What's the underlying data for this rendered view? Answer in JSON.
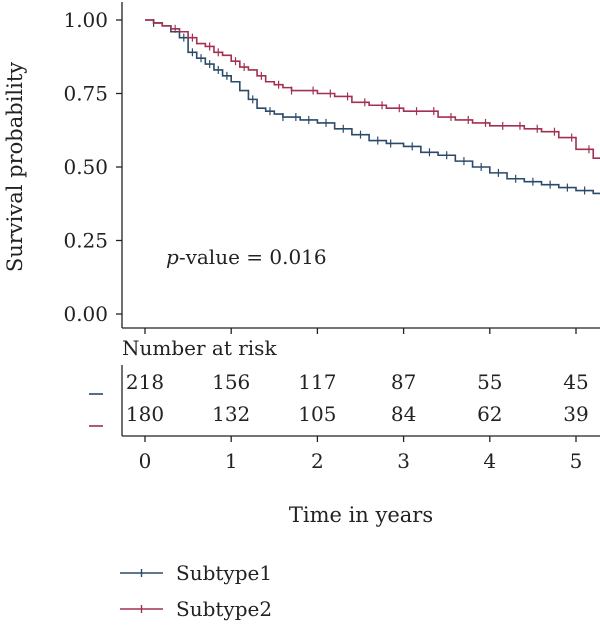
{
  "chart_data": {
    "type": "line",
    "subtype": "kaplan-meier survival curve",
    "ylabel": "Survival probability",
    "xlabel": "Time in years",
    "xlim": [
      0,
      5.3
    ],
    "ylim": [
      0,
      1
    ],
    "x_ticks": [
      "0",
      "1",
      "2",
      "3",
      "4",
      "5"
    ],
    "y_ticks": [
      "0.00",
      "0.25",
      "0.50",
      "0.75",
      "1.00"
    ],
    "grid": false,
    "annotation": {
      "prefix": "p",
      "text": "-value = 0.016"
    },
    "legend_position": "bottom-left",
    "series": [
      {
        "name": "Subtype1",
        "color": "#2b4a6b",
        "x": [
          0,
          0.05,
          0.1,
          0.2,
          0.3,
          0.4,
          0.5,
          0.6,
          0.7,
          0.8,
          0.9,
          1.0,
          1.1,
          1.2,
          1.3,
          1.4,
          1.5,
          1.6,
          1.7,
          1.8,
          1.9,
          2.0,
          2.2,
          2.4,
          2.6,
          2.8,
          3.0,
          3.2,
          3.4,
          3.6,
          3.8,
          4.0,
          4.2,
          4.4,
          4.6,
          4.8,
          5.0,
          5.2,
          5.3
        ],
        "y": [
          1.0,
          1.0,
          0.99,
          0.98,
          0.96,
          0.94,
          0.89,
          0.87,
          0.85,
          0.83,
          0.81,
          0.79,
          0.76,
          0.73,
          0.7,
          0.69,
          0.68,
          0.67,
          0.67,
          0.66,
          0.66,
          0.65,
          0.63,
          0.61,
          0.59,
          0.58,
          0.57,
          0.55,
          0.54,
          0.52,
          0.5,
          0.48,
          0.46,
          0.45,
          0.44,
          0.43,
          0.42,
          0.41,
          0.39
        ],
        "censor_x": [
          0.1,
          0.45,
          0.55,
          0.65,
          0.75,
          0.85,
          0.95,
          1.25,
          1.45,
          1.6,
          1.75,
          1.9,
          2.1,
          2.3,
          2.5,
          2.7,
          2.85,
          3.1,
          3.3,
          3.5,
          3.7,
          3.9,
          4.1,
          4.3,
          4.5,
          4.7,
          4.9,
          5.1
        ]
      },
      {
        "name": "Subtype2",
        "color": "#a33050",
        "x": [
          0,
          0.05,
          0.1,
          0.2,
          0.3,
          0.4,
          0.5,
          0.6,
          0.7,
          0.8,
          0.9,
          1.0,
          1.1,
          1.2,
          1.3,
          1.4,
          1.5,
          1.6,
          1.7,
          1.8,
          1.9,
          2.0,
          2.2,
          2.4,
          2.6,
          2.8,
          3.0,
          3.2,
          3.4,
          3.6,
          3.8,
          4.0,
          4.2,
          4.4,
          4.6,
          4.8,
          5.0,
          5.2,
          5.3
        ],
        "y": [
          1.0,
          1.0,
          0.99,
          0.98,
          0.97,
          0.96,
          0.94,
          0.92,
          0.91,
          0.89,
          0.88,
          0.86,
          0.84,
          0.83,
          0.81,
          0.79,
          0.78,
          0.77,
          0.76,
          0.76,
          0.76,
          0.75,
          0.74,
          0.72,
          0.71,
          0.7,
          0.69,
          0.69,
          0.67,
          0.66,
          0.65,
          0.64,
          0.64,
          0.63,
          0.62,
          0.6,
          0.56,
          0.53,
          0.51
        ],
        "censor_x": [
          0.35,
          0.55,
          0.75,
          0.85,
          1.05,
          1.15,
          1.35,
          1.55,
          1.7,
          1.95,
          2.15,
          2.35,
          2.55,
          2.75,
          2.95,
          3.15,
          3.35,
          3.55,
          3.75,
          3.95,
          4.15,
          4.35,
          4.55,
          4.75,
          4.95,
          5.15,
          5.3
        ]
      }
    ],
    "risk_table": {
      "title": "Number at risk",
      "times": [
        0,
        1,
        2,
        3,
        4,
        5
      ],
      "rows": [
        {
          "series": "Subtype1",
          "values": [
            218,
            156,
            117,
            87,
            55,
            45
          ]
        },
        {
          "series": "Subtype2",
          "values": [
            180,
            132,
            105,
            84,
            62,
            39
          ]
        }
      ]
    }
  }
}
